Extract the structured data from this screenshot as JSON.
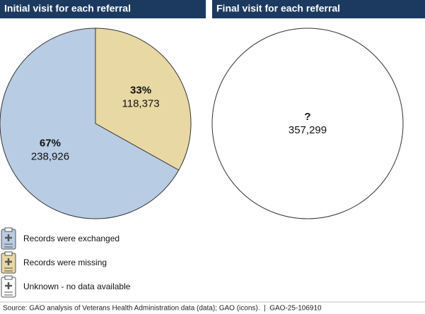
{
  "chart_data": [
    {
      "type": "pie",
      "title": "Initial visit for each referral",
      "categories": [
        "Records were exchanged",
        "Records were missing"
      ],
      "values": [
        238926,
        118373
      ],
      "value_labels": [
        "238,926",
        "118,373"
      ],
      "percents": [
        67,
        33
      ],
      "percent_labels": [
        "67%",
        "33%"
      ],
      "colors": [
        "#b8cce4",
        "#e8d8a4"
      ]
    },
    {
      "type": "pie",
      "title": "Final visit for each referral",
      "categories": [
        "Unknown - no data available"
      ],
      "values": [
        357299
      ],
      "value_labels": [
        "357,299"
      ],
      "percent_labels": [
        "?"
      ],
      "colors": [
        "#ffffff"
      ]
    }
  ],
  "source": "Source: GAO analysis of Veterans Health Administration data (data); GAO (icons).  |  GAO-25-106910"
}
